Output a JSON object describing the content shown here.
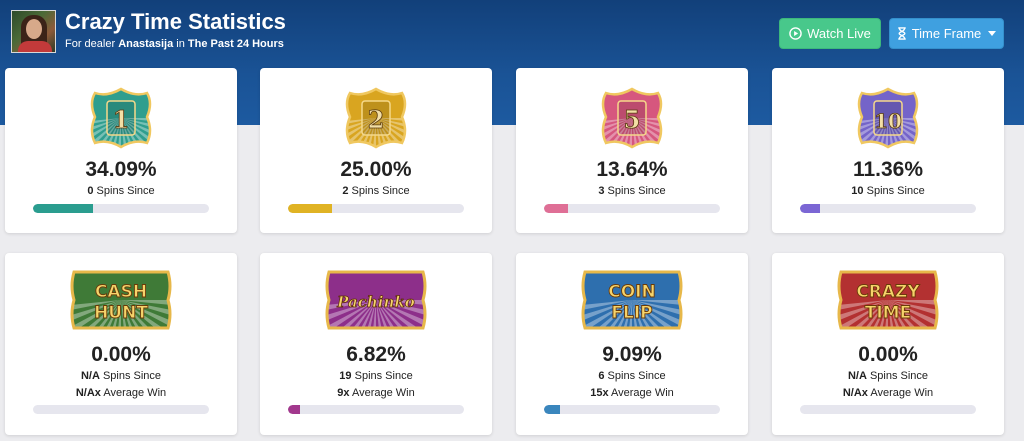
{
  "header": {
    "title": "Crazy Time Statistics",
    "subtitle_prefix": "For dealer",
    "dealer": "Anastasija",
    "subtitle_mid": "in",
    "timeframe": "The Past 24 Hours",
    "watch_live_label": "Watch Live",
    "time_frame_label": "Time Frame"
  },
  "numbers": [
    {
      "label": "1",
      "percent": "34.09%",
      "spins_count": "0",
      "spins_label": "Spins Since",
      "progress": 0.3409,
      "color": "#2a9d8f",
      "badge_color": "#2f9e8e"
    },
    {
      "label": "2",
      "percent": "25.00%",
      "spins_count": "2",
      "spins_label": "Spins Since",
      "progress": 0.25,
      "color": "#e0b324",
      "badge_color": "#d9a520"
    },
    {
      "label": "5",
      "percent": "13.64%",
      "spins_count": "3",
      "spins_label": "Spins Since",
      "progress": 0.1364,
      "color": "#df6f96",
      "badge_color": "#d6577e"
    },
    {
      "label": "10",
      "percent": "11.36%",
      "spins_count": "10",
      "spins_label": "Spins Since",
      "progress": 0.1136,
      "color": "#7b66d4",
      "badge_color": "#7464c9"
    }
  ],
  "bonuses": [
    {
      "label_line1": "CASH",
      "label_line2": "HUNT",
      "percent": "0.00%",
      "spins_count": "N/A",
      "spins_label": "Spins Since",
      "avg_value": "N/Ax",
      "avg_label": "Average Win",
      "progress": 0,
      "color": "#2a9d8f",
      "badge_color": "#3f7a37"
    },
    {
      "label_line1": "Pachinko",
      "label_line2": "",
      "percent": "6.82%",
      "spins_count": "19",
      "spins_label": "Spins Since",
      "avg_value": "9x",
      "avg_label": "Average Win",
      "progress": 0.0682,
      "color": "#a2388d",
      "badge_color": "#8d2f8a"
    },
    {
      "label_line1": "COIN",
      "label_line2": "FLIP",
      "percent": "9.09%",
      "spins_count": "6",
      "spins_label": "Spins Since",
      "avg_value": "15x",
      "avg_label": "Average Win",
      "progress": 0.0909,
      "color": "#3a86bd",
      "badge_color": "#2e6fae"
    },
    {
      "label_line1": "CRAZY",
      "label_line2": "TIME",
      "percent": "0.00%",
      "spins_count": "N/A",
      "spins_label": "Spins Since",
      "avg_value": "N/Ax",
      "avg_label": "Average Win",
      "progress": 0,
      "color": "#c43b3b",
      "badge_color": "#b33131"
    }
  ]
}
